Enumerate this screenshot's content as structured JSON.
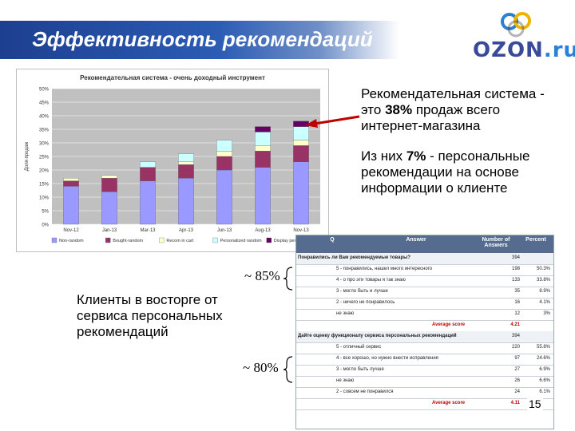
{
  "slide": {
    "title": "Эффективность рекомендаций",
    "logo": {
      "name": "OZON",
      "suffix": ".ru"
    },
    "page_number": "15"
  },
  "right_notes": {
    "note1": {
      "pre": "Рекомендательная система - это ",
      "bold": "38%",
      "post": " продаж всего интернет-магазина"
    },
    "note2": {
      "pre": "Из них ",
      "bold": "7%",
      "post": " - персональные рекомендации на основе информации о клиенте"
    }
  },
  "clients_text": "Клиенты в восторге от сервиса персональных рекомендаций",
  "pct_85": "~ 85%",
  "pct_80": "~ 80%",
  "colors": {
    "title_band": "#1d3f8f",
    "arrow": "#c00000",
    "seg1": "#9999ff",
    "seg2": "#993366",
    "seg3": "#ffffcc",
    "seg4": "#ccffff",
    "seg5": "#660066"
  },
  "chart_data": {
    "type": "bar",
    "stacked": true,
    "title": "Рекомендательная система - очень доходный инструмент",
    "ylabel": "Доля продаж",
    "ylim": [
      0,
      50
    ],
    "yticks": [
      "0%",
      "5%",
      "10%",
      "15%",
      "20%",
      "25%",
      "30%",
      "35%",
      "40%",
      "45%",
      "50%"
    ],
    "categories": [
      "Nov-12",
      "Jan-13",
      "Mar-13",
      "Apr-13",
      "Jun-13",
      "Aug-13",
      "Nov-13"
    ],
    "series": [
      {
        "name": "Non-random",
        "color": "#9999ff",
        "values": [
          14,
          12,
          16,
          17,
          20,
          21,
          23
        ]
      },
      {
        "name": "Bought-random",
        "color": "#993366",
        "values": [
          2,
          5,
          5,
          5,
          5,
          6,
          6
        ]
      },
      {
        "name": "Recom in cart",
        "color": "#ffffcc",
        "values": [
          1,
          1,
          0,
          1,
          2,
          2,
          2
        ]
      },
      {
        "name": "Personalized random",
        "color": "#ccffff",
        "values": [
          0,
          0,
          2,
          3,
          4,
          5,
          5
        ]
      },
      {
        "name": "Display personalized",
        "color": "#660066",
        "values": [
          0,
          0,
          0,
          0,
          0,
          2,
          2
        ]
      }
    ],
    "legend": "bottom",
    "grid": true
  },
  "survey": {
    "headers": {
      "question": "Q",
      "answer": "Answer",
      "number": "Number of Answers",
      "percent": "Percent"
    },
    "block1": {
      "question": "Понравились ли Вам рекомендуемые товары?",
      "total": "394",
      "rows": [
        {
          "a": "5 - понравились, нашел много интересного",
          "n": "198",
          "p": "50.3%"
        },
        {
          "a": "4 - о про эти товары я так знаю",
          "n": "133",
          "p": "33.8%"
        },
        {
          "a": "3 - могло быть и лучше",
          "n": "35",
          "p": "8.9%"
        },
        {
          "a": "2 - ничего не понравилось",
          "n": "16",
          "p": "4.1%"
        },
        {
          "a": "не знаю",
          "n": "12",
          "p": "3%"
        }
      ],
      "avg_label": "Average score",
      "avg_value": "4.21"
    },
    "block2": {
      "question": "Дайте оценку функционалу сервиса персональных рекомендаций",
      "total": "394",
      "rows": [
        {
          "a": "5 - отличный сервис",
          "n": "220",
          "p": "55.8%"
        },
        {
          "a": "4 - все хорошо, но нужно внести исправления",
          "n": "97",
          "p": "24.6%"
        },
        {
          "a": "3 - могло быть лучше",
          "n": "27",
          "p": "6.9%"
        },
        {
          "a": "не знаю",
          "n": "26",
          "p": "6.6%"
        },
        {
          "a": "2 - совсем не понравился",
          "n": "24",
          "p": "6.1%"
        }
      ],
      "avg_label": "Average score",
      "avg_value": "4.11"
    }
  }
}
